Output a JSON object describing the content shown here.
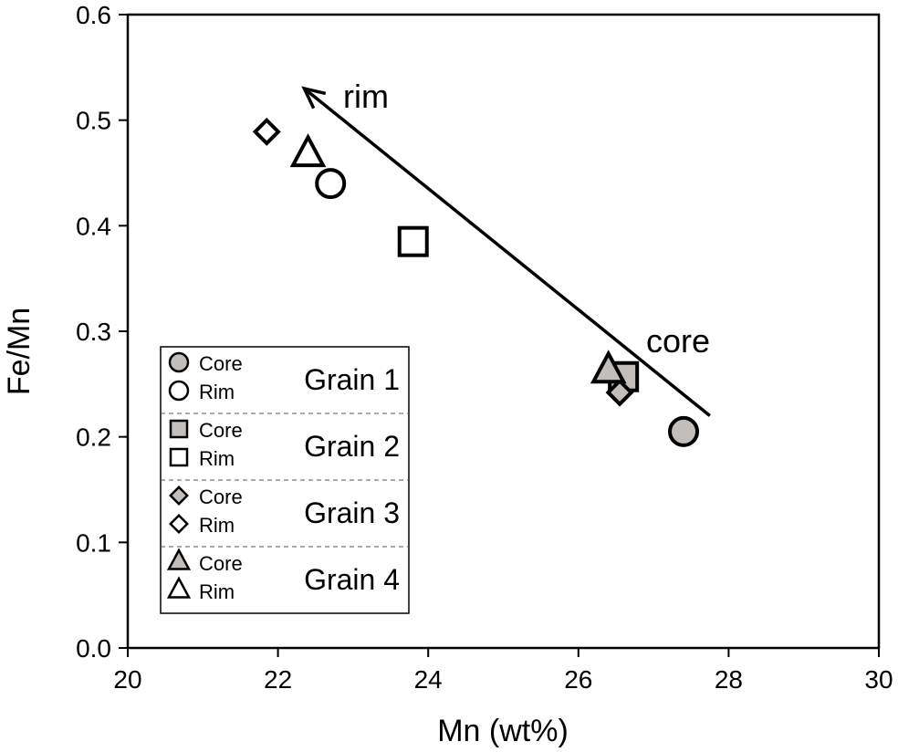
{
  "chart_data": {
    "type": "scatter",
    "title": "",
    "xlabel": "Mn (wt%)",
    "ylabel": "Fe/Mn",
    "xlim": [
      20,
      30
    ],
    "ylim": [
      0,
      0.6
    ],
    "xticks": [
      "20",
      "22",
      "24",
      "26",
      "28",
      "30"
    ],
    "xtick_values": [
      20,
      22,
      24,
      26,
      28,
      30
    ],
    "yticks": [
      "0.0",
      "0.1",
      "0.2",
      "0.3",
      "0.4",
      "0.5",
      "0.6"
    ],
    "ytick_values": [
      0,
      0.1,
      0.2,
      0.3,
      0.4,
      0.5,
      0.6
    ],
    "grid": false,
    "legend_position": "bottom-left",
    "core_color": "#c2bebb",
    "rim_color": "#ffffff",
    "series": [
      {
        "name": "Grain 1",
        "marker": "circle",
        "core": {
          "x": 27.4,
          "y": 0.205
        },
        "rim": {
          "x": 22.7,
          "y": 0.44
        }
      },
      {
        "name": "Grain 2",
        "marker": "square",
        "core": {
          "x": 26.6,
          "y": 0.257
        },
        "rim": {
          "x": 23.8,
          "y": 0.385
        }
      },
      {
        "name": "Grain 3",
        "marker": "diamond",
        "core": {
          "x": 26.55,
          "y": 0.242
        },
        "rim": {
          "x": 21.85,
          "y": 0.489
        }
      },
      {
        "name": "Grain 4",
        "marker": "triangle",
        "core": {
          "x": 26.4,
          "y": 0.262
        },
        "rim": {
          "x": 22.4,
          "y": 0.467
        }
      }
    ],
    "legend": {
      "core_label": "Core",
      "rim_label": "Rim"
    },
    "annotations": {
      "arrow": {
        "from": {
          "x": 27.75,
          "y": 0.22
        },
        "to": {
          "x": 22.35,
          "y": 0.53
        }
      },
      "rim_label": "rim",
      "core_label": "core"
    }
  }
}
